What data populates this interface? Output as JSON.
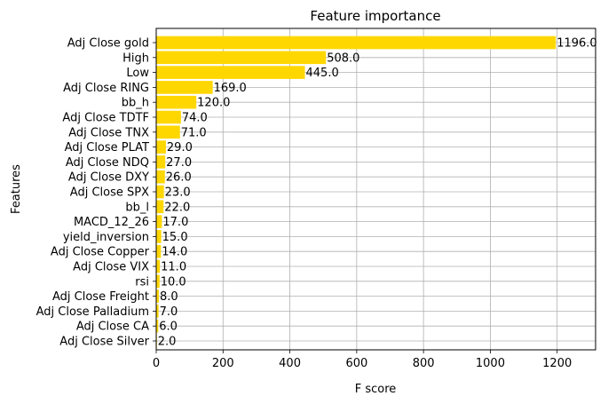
{
  "chart_data": {
    "type": "bar",
    "orientation": "horizontal",
    "title": "Feature importance",
    "xlabel": "F score",
    "ylabel": "Features",
    "xlim": [
      0,
      1315
    ],
    "xticks": [
      0,
      200,
      400,
      600,
      800,
      1000,
      1200
    ],
    "grid": true,
    "bar_color": "#ffd700",
    "categories": [
      "Adj Close gold",
      "High",
      "Low",
      "Adj Close RING",
      "bb_h",
      "Adj Close TDTF",
      "Adj Close TNX",
      "Adj Close PLAT",
      "Adj Close NDQ",
      "Adj Close DXY",
      "Adj Close SPX",
      "bb_l",
      "MACD_12_26",
      "yield_inversion",
      "Adj Close Copper",
      "Adj Close VIX",
      "rsi",
      "Adj Close Freight",
      "Adj Close Palladium",
      "Adj Close CA",
      "Adj Close Silver"
    ],
    "values": [
      1196,
      508,
      445,
      169,
      120,
      74,
      71,
      29,
      27,
      26,
      23,
      22,
      17,
      15,
      14,
      11,
      10,
      8,
      7,
      6,
      2
    ],
    "value_labels": [
      "1196.0",
      "508.0",
      "445.0",
      "169.0",
      "120.0",
      "74.0",
      "71.0",
      "29.0",
      "27.0",
      "26.0",
      "23.0",
      "22.0",
      "17.0",
      "15.0",
      "14.0",
      "11.0",
      "10.0",
      "8.0",
      "7.0",
      "6.0",
      "2.0"
    ]
  }
}
